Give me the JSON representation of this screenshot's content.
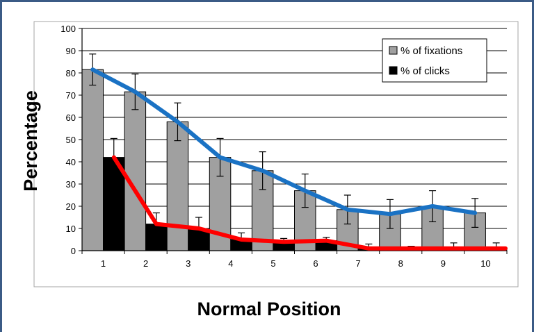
{
  "chart_data": {
    "type": "bar",
    "title": "",
    "xlabel": "Normal Position",
    "ylabel": "Percentage",
    "categories": [
      "1",
      "2",
      "3",
      "4",
      "5",
      "6",
      "7",
      "8",
      "9",
      "10"
    ],
    "ylim": [
      0,
      100
    ],
    "yticks": [
      0,
      10,
      20,
      30,
      40,
      50,
      60,
      70,
      80,
      90,
      100
    ],
    "grid": true,
    "legend_position": "top-right",
    "series": [
      {
        "name": "% of fixations",
        "values": [
          81.5,
          71.5,
          58,
          42,
          36,
          27,
          18.5,
          16.5,
          20,
          17
        ],
        "error": [
          7,
          8,
          8.5,
          8.5,
          8.5,
          7.5,
          6.5,
          6.5,
          7,
          6.5
        ],
        "color": "#a0a0a0"
      },
      {
        "name": "% of clicks",
        "values": [
          42,
          12,
          10,
          5,
          4,
          4.5,
          1,
          1,
          1,
          1
        ],
        "error": [
          8.5,
          5,
          5,
          3,
          1.5,
          1.5,
          2,
          1,
          2.5,
          2.5
        ],
        "color": "#000000"
      }
    ],
    "overlay_lines": [
      {
        "follows": "% of fixations",
        "color": "#1a72c4"
      },
      {
        "follows": "% of clicks",
        "color": "#ff0000"
      }
    ]
  }
}
